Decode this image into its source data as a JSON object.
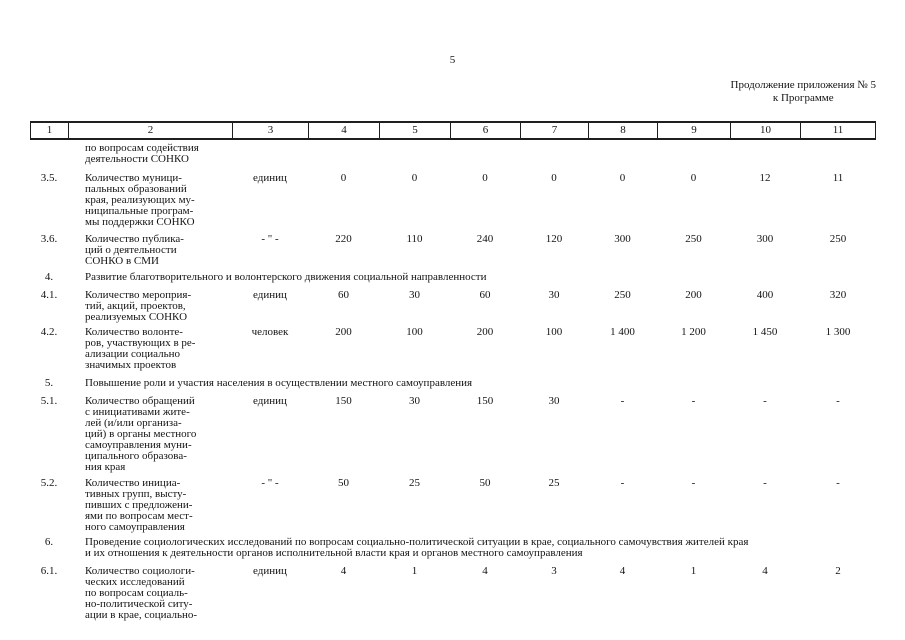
{
  "page": {
    "page_number": "5",
    "continuation_line1": "Продолжение приложения № 5",
    "continuation_line2": "к Программе"
  },
  "table": {
    "column_numbers": [
      "1",
      "2",
      "3",
      "4",
      "5",
      "6",
      "7",
      "8",
      "9",
      "10",
      "11"
    ],
    "rows": [
      {
        "type": "continuation",
        "name": "по вопросам содействия\nдеятельности СОНКО"
      },
      {
        "type": "indicator",
        "num": "3.5.",
        "name": "Количество муници-\nпальных образований\nкрая, реализующих му-\nниципальные програм-\nмы поддержки СОНКО",
        "unit": "единиц",
        "values": [
          "0",
          "0",
          "0",
          "0",
          "0",
          "0",
          "12",
          "11"
        ]
      },
      {
        "type": "indicator",
        "num": "3.6.",
        "name": "Количество публика-\nций о деятельности\nСОНКО в СМИ",
        "unit": "- \" -",
        "values": [
          "220",
          "110",
          "240",
          "120",
          "300",
          "250",
          "300",
          "250"
        ]
      },
      {
        "type": "section",
        "num": "4.",
        "name": "Развитие благотворительного и волонтерского движения социальной направленности"
      },
      {
        "type": "indicator",
        "num": "4.1.",
        "name": "Количество мероприя-\nтий, акций, проектов,\nреализуемых СОНКО",
        "unit": "единиц",
        "values": [
          "60",
          "30",
          "60",
          "30",
          "250",
          "200",
          "400",
          "320"
        ]
      },
      {
        "type": "indicator",
        "num": "4.2.",
        "name": "Количество волонте-\nров, участвующих в ре-\nализации социально\nзначимых проектов",
        "unit": "человек",
        "values": [
          "200",
          "100",
          "200",
          "100",
          "1 400",
          "1 200",
          "1 450",
          "1 300"
        ]
      },
      {
        "type": "section",
        "num": "5.",
        "name": "Повышение роли и участия населения в осуществлении местного самоуправления"
      },
      {
        "type": "indicator",
        "num": "5.1.",
        "name": "Количество обращений\nс инициативами жите-\nлей (и/или организа-\nций) в органы местного\nсамоуправления муни-\nципального образова-\nния края",
        "unit": "единиц",
        "values": [
          "150",
          "30",
          "150",
          "30",
          "-",
          "-",
          "-",
          "-"
        ]
      },
      {
        "type": "indicator",
        "num": "5.2.",
        "name": "Количество инициа-\nтивных групп, высту-\nпивших с предложени-\nями по вопросам мест-\nного самоуправления",
        "unit": "- \" -",
        "values": [
          "50",
          "25",
          "50",
          "25",
          "-",
          "-",
          "-",
          "-"
        ]
      },
      {
        "type": "section",
        "num": "6.",
        "name": "Проведение социологических исследований по вопросам социально-политической ситуации в крае, социального самочувствия жителей края\nи их отношения к деятельности органов исполнительной власти края и органов местного самоуправления"
      },
      {
        "type": "indicator",
        "num": "6.1.",
        "name": "Количество социологи-\nческих исследований\nпо вопросам социаль-\nно-политической ситу-\nации в крае, социально-",
        "unit": "единиц",
        "values": [
          "4",
          "1",
          "4",
          "3",
          "4",
          "1",
          "4",
          "2"
        ]
      }
    ]
  }
}
